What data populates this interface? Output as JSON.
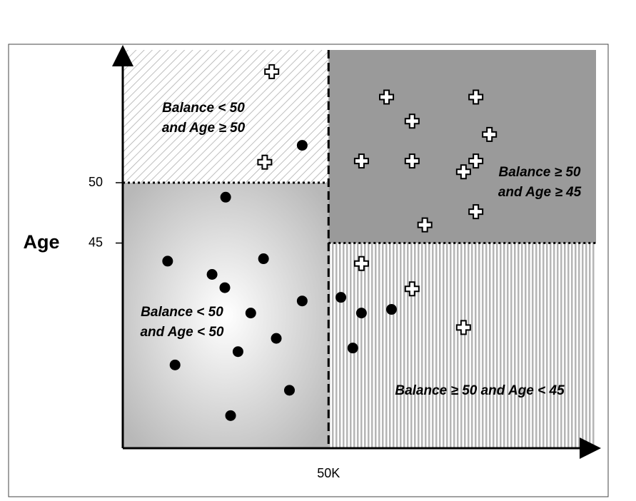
{
  "chart_data": {
    "type": "scatter",
    "y_label": "Age",
    "xlim": [
      0,
      115
    ],
    "ylim": [
      28,
      61
    ],
    "xticks": [
      {
        "value": 50,
        "label": "50K"
      }
    ],
    "yticks": [
      50,
      45
    ],
    "regions": [
      {
        "label": [
          "Balance < 50",
          "and Age ≥ 50"
        ],
        "x_range": [
          0,
          50
        ],
        "y_range": [
          50,
          61
        ],
        "fill": "hatch"
      },
      {
        "label": [
          "Balance ≥ 50",
          "and Age ≥ 45"
        ],
        "x_range": [
          50,
          115
        ],
        "y_range": [
          45,
          61
        ],
        "fill": "#9a9a9a"
      },
      {
        "label": [
          "Balance < 50",
          "and Age < 50"
        ],
        "x_range": [
          0,
          50
        ],
        "y_range": [
          28,
          50
        ],
        "fill": "radial"
      },
      {
        "label": [
          "Balance ≥ 50 and Age < 45"
        ],
        "x_range": [
          50,
          115
        ],
        "y_range": [
          28,
          45
        ],
        "fill": "stripes"
      }
    ],
    "series": [
      {
        "marker": "plus",
        "color": "#ffffff",
        "x": [
          36.2,
          64.1,
          85.8,
          70.3,
          89.1,
          58.0,
          70.3,
          34.5,
          85.8,
          82.8,
          85.8,
          73.4,
          58.0,
          70.3,
          82.8
        ],
        "values": [
          59.2,
          57.1,
          57.1,
          55.1,
          54.0,
          51.8,
          51.8,
          51.7,
          51.8,
          50.9,
          47.6,
          46.5,
          43.3,
          41.2,
          38.0
        ]
      },
      {
        "marker": "dot",
        "color": "#000000",
        "x": [
          43.6,
          25.0,
          10.9,
          34.2,
          21.7,
          24.8,
          43.6,
          31.1,
          53.0,
          58.0,
          65.3,
          37.3,
          28.0,
          55.9,
          12.7,
          40.5,
          26.2
        ],
        "values": [
          53.1,
          48.8,
          43.5,
          43.7,
          42.4,
          41.3,
          40.2,
          39.2,
          40.5,
          39.2,
          39.5,
          37.1,
          36.0,
          36.3,
          34.9,
          32.8,
          30.7
        ]
      }
    ]
  }
}
